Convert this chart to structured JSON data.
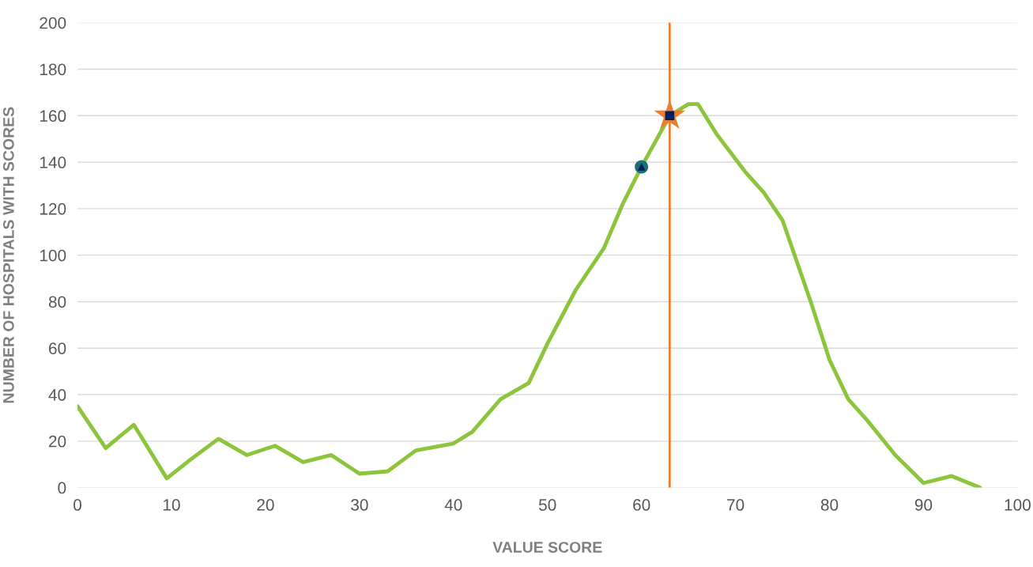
{
  "chart_data": {
    "type": "line",
    "xlabel": "VALUE SCORE",
    "ylabel": "NUMBER OF HOSPITALS WITH SCORES",
    "xlim": [
      0,
      100
    ],
    "xticks": [
      0,
      10,
      20,
      30,
      40,
      50,
      60,
      70,
      80,
      90,
      100
    ],
    "ylim": [
      0,
      200
    ],
    "yticks": [
      0,
      20,
      40,
      60,
      80,
      100,
      120,
      140,
      160,
      180,
      200
    ],
    "grid": "y",
    "legend": false,
    "series": [
      {
        "color": "#8cc43c",
        "marker": "none",
        "x": [
          0,
          3,
          6,
          9.5,
          12,
          15,
          18,
          21,
          24,
          27,
          30,
          33,
          36,
          40,
          42,
          45,
          48,
          50,
          53,
          56,
          58,
          60,
          63,
          65,
          66,
          68,
          71,
          73,
          75,
          78,
          80,
          82,
          84,
          87,
          90,
          91,
          93,
          96
        ],
        "values": [
          35,
          17,
          27,
          4,
          12,
          21,
          14,
          18,
          11,
          14,
          6,
          7,
          16,
          19,
          24,
          38,
          45,
          62,
          85,
          103,
          122,
          138,
          160,
          165,
          165,
          152,
          136,
          127,
          115,
          80,
          55,
          38,
          29,
          14,
          2,
          3,
          5,
          0
        ]
      },
      {
        "type": "scatter",
        "color": "#1d6f78",
        "marker": "circle",
        "x": [
          60
        ],
        "values": [
          138
        ]
      },
      {
        "type": "scatter",
        "color": "#002060",
        "marker": "triangle",
        "x": [
          60
        ],
        "values": [
          138
        ]
      },
      {
        "type": "scatter",
        "color": "#ed7d31",
        "marker": "star",
        "x": [
          63
        ],
        "values": [
          160
        ]
      },
      {
        "type": "scatter",
        "color": "#002060",
        "marker": "square",
        "x": [
          63
        ],
        "values": [
          160
        ]
      }
    ],
    "ref_lines": [
      {
        "axis": "x",
        "value": 63,
        "color": "#ed7d31"
      }
    ]
  }
}
